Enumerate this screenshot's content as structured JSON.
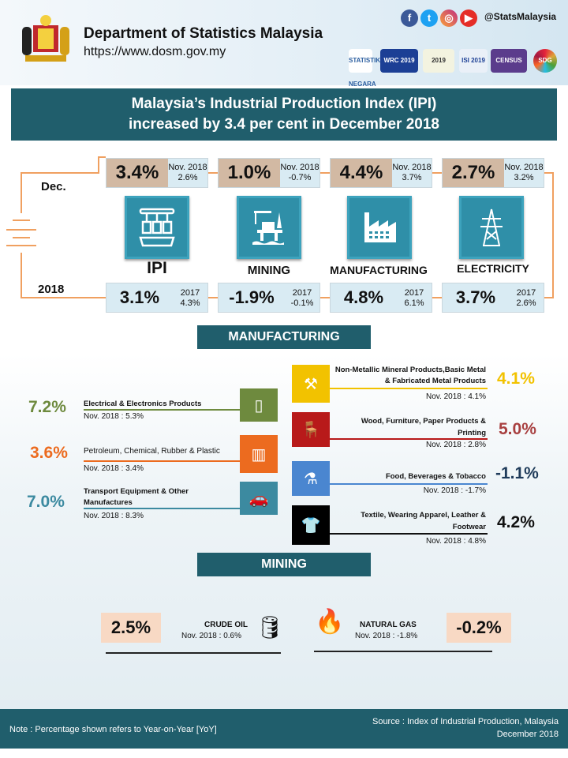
{
  "header": {
    "org": "Department of Statistics Malaysia",
    "url": "https://www.dosm.gov.my",
    "handle": "@StatsMalaysia",
    "social_icons": [
      "facebook-icon",
      "twitter-icon",
      "instagram-icon",
      "youtube-icon"
    ],
    "logos": [
      "STATISTIK NEGARA",
      "WRC 2019",
      "2019",
      "ISI 2019",
      "CENSUS",
      "SDG"
    ]
  },
  "title": {
    "line1": "Malaysia’s Industrial Production Index (IPI)",
    "line2": "increased by 3.4 per cent in December 2018"
  },
  "overview": {
    "row_label_top": "Dec.",
    "row_label_bottom": "2018",
    "categories": [
      {
        "name": "IPI",
        "dec": "3.4%",
        "nov_label": "Nov. 2018",
        "nov": "2.6%",
        "year": "3.1%",
        "prev_label": "2017",
        "prev": "4.3%"
      },
      {
        "name": "MINING",
        "dec": "1.0%",
        "nov_label": "Nov. 2018",
        "nov": "-0.7%",
        "year": "-1.9%",
        "prev_label": "2017",
        "prev": "-0.1%"
      },
      {
        "name": "MANUFACTURING",
        "dec": "4.4%",
        "nov_label": "Nov. 2018",
        "nov": "3.7%",
        "year": "4.8%",
        "prev_label": "2017",
        "prev": "6.1%"
      },
      {
        "name": "ELECTRICITY",
        "dec": "2.7%",
        "nov_label": "Nov. 2018",
        "nov": "3.2%",
        "year": "3.7%",
        "prev_label": "2017",
        "prev": "2.6%"
      }
    ]
  },
  "manufacturing": {
    "title": "MANUFACTURING",
    "left": [
      {
        "pct": "7.2%",
        "label": "Electrical & Electronics Products",
        "nov": "Nov. 2018 : 5.3%",
        "color": "#6e8a3e"
      },
      {
        "pct": "3.6%",
        "label": "Petroleum, Chemical, Rubber & Plastic",
        "nov": "Nov. 2018 : 3.4%",
        "color": "#ec6b1f"
      },
      {
        "pct": "7.0%",
        "label": "Transport Equipment & Other Manufactures",
        "nov": "Nov. 2018 : 8.3%",
        "color": "#3c8aa0"
      }
    ],
    "right": [
      {
        "pct": "4.1%",
        "label": "Non-Metallic Mineral Products,Basic Metal & Fabricated Metal Products",
        "nov": "Nov. 2018 : 4.1%",
        "color": "#f2c200"
      },
      {
        "pct": "5.0%",
        "label": "Wood, Furniture, Paper Products & Printing",
        "nov": "Nov. 2018 : 2.8%",
        "color": "#b81a1a"
      },
      {
        "pct": "-1.1%",
        "label": "Food, Beverages & Tobacco",
        "nov": "Nov. 2018 : -1.7%",
        "color": "#4a86d0"
      },
      {
        "pct": "4.2%",
        "label": "Textile, Wearing Apparel, Leather & Footwear",
        "nov": "Nov. 2018 : 4.8%",
        "color": "#111111"
      }
    ]
  },
  "mining": {
    "title": "MINING",
    "crude": {
      "pct": "2.5%",
      "label": "CRUDE OIL",
      "nov": "Nov. 2018 : 0.6%"
    },
    "gas": {
      "pct": "-0.2%",
      "label": "NATURAL GAS",
      "nov": "Nov. 2018 : -1.8%"
    }
  },
  "footer": {
    "note": "Note :  Percentage shown refers to Year-on-Year [YoY]",
    "source1": "Source : Index of Industrial Production, Malaysia",
    "source2": "December 2018"
  }
}
